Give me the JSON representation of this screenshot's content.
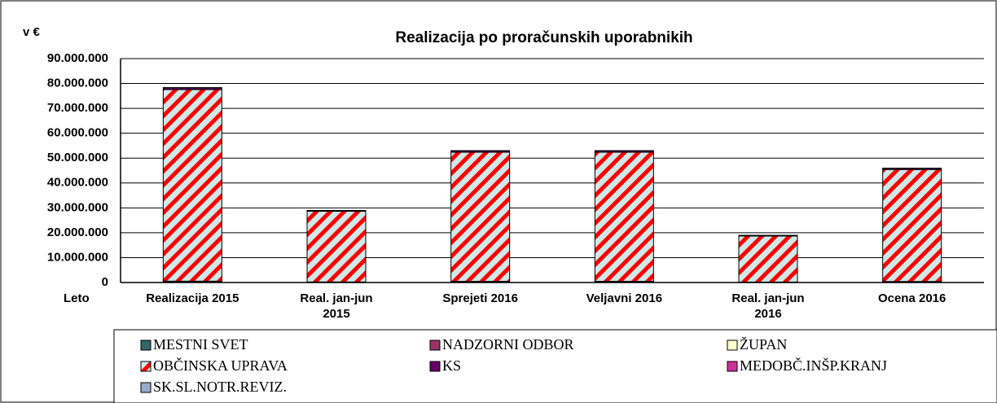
{
  "chart_data": {
    "type": "stacked_bar",
    "title": "Realizacija po proračunskih uporabnikih",
    "y_label": "v €",
    "x_label": "Leto",
    "categories": [
      "Realizacija 2015",
      "Real. jan-jun 2015",
      "Sprejeti 2016",
      "Veljavni 2016",
      "Real. jan-jun 2016",
      "Ocena 2016"
    ],
    "series": [
      {
        "name": "MESTNI SVET",
        "color": "#336666",
        "values": [
          300000,
          120000,
          250000,
          250000,
          100000,
          220000
        ]
      },
      {
        "name": "NADZORNI ODBOR",
        "color": "#993366",
        "values": [
          40000,
          15000,
          40000,
          40000,
          10000,
          30000
        ]
      },
      {
        "name": "ŽUPAN",
        "color": "#ffffcc",
        "values": [
          200000,
          90000,
          180000,
          180000,
          70000,
          160000
        ]
      },
      {
        "name": "OBČINSKA UPRAVA",
        "color": "#ff0000",
        "pattern": "diagonal",
        "values": [
          77000000,
          28400000,
          51900000,
          51900000,
          18500000,
          45000000
        ]
      },
      {
        "name": "KS",
        "color": "#660066",
        "values": [
          700000,
          300000,
          550000,
          550000,
          250000,
          500000
        ]
      },
      {
        "name": "MEDOBČ.INŠP.KRANJ",
        "color": "#cc3399",
        "values": [
          90000,
          40000,
          80000,
          80000,
          30000,
          70000
        ]
      },
      {
        "name": "SK.SL.NOTR.REVIZ.",
        "color": "#99aacc",
        "values": [
          40000,
          20000,
          40000,
          40000,
          15000,
          35000
        ]
      }
    ],
    "ylim": [
      0,
      90000000
    ],
    "yticks": [
      {
        "value": 0,
        "label": "0"
      },
      {
        "value": 10000000,
        "label": "10.000.000"
      },
      {
        "value": 20000000,
        "label": "20.000.000"
      },
      {
        "value": 30000000,
        "label": "30.000.000"
      },
      {
        "value": 40000000,
        "label": "40.000.000"
      },
      {
        "value": 50000000,
        "label": "50.000.000"
      },
      {
        "value": 60000000,
        "label": "60.000.000"
      },
      {
        "value": 70000000,
        "label": "70.000.000"
      },
      {
        "value": 80000000,
        "label": "80.000.000"
      },
      {
        "value": 90000000,
        "label": "90.000.000"
      }
    ],
    "grid": true
  }
}
